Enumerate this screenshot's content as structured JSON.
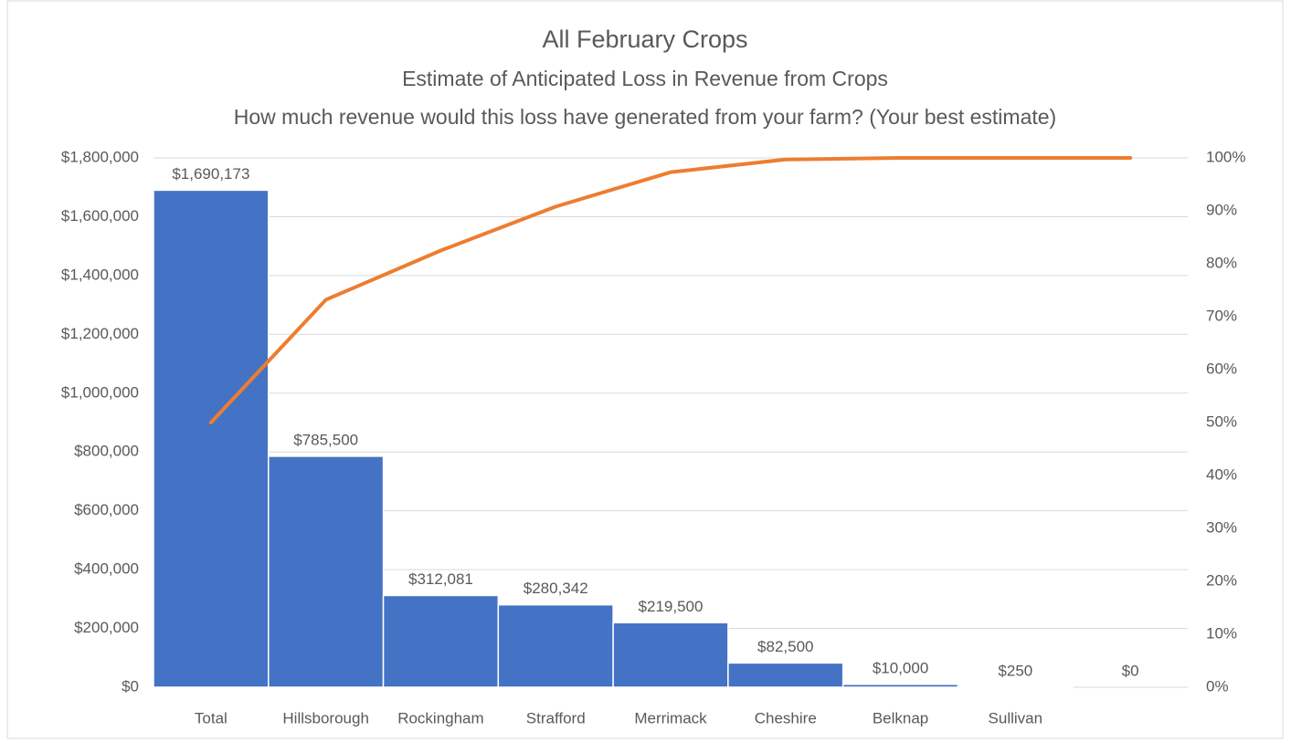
{
  "chart_data": {
    "type": "pareto",
    "title": "All February Crops",
    "subtitles": [
      "Estimate of Anticipated  Loss in Revenue from  Crops",
      "How much  revenue  would this loss have generated from  your farm? (Your best estimate)"
    ],
    "categories": [
      "Total",
      "Hillsborough",
      "Rockingham",
      "Strafford",
      "Merrimack",
      "Cheshire",
      "Belknap",
      "Sullivan",
      null
    ],
    "series": [
      {
        "color": "#4472c4",
        "values": [
          1690173,
          785500,
          312081,
          280342,
          219500,
          82500,
          10000,
          250,
          0
        ],
        "value_labels": [
          "$1,690,173",
          "$785,500",
          "$312,081",
          "$280,342",
          "$219,500",
          "$82,500",
          "$10,000",
          "$250",
          "$0"
        ]
      },
      {
        "color": "#ed7d31",
        "axis": "y2",
        "values": [
          50.0,
          73.2,
          82.5,
          90.8,
          97.3,
          99.7,
          100,
          100,
          100
        ]
      }
    ],
    "ylim": [
      0,
      1800000
    ],
    "yticks": [
      {
        "value": 0,
        "label": "$0"
      },
      {
        "value": 200000,
        "label": "$200,000"
      },
      {
        "value": 400000,
        "label": "$400,000"
      },
      {
        "value": 600000,
        "label": "$600,000"
      },
      {
        "value": 800000,
        "label": "$800,000"
      },
      {
        "value": 1000000,
        "label": "$1,000,000"
      },
      {
        "value": 1200000,
        "label": "$1,200,000"
      },
      {
        "value": 1400000,
        "label": "$1,400,000"
      },
      {
        "value": 1600000,
        "label": "$1,600,000"
      },
      {
        "value": 1800000,
        "label": "$1,800,000"
      }
    ],
    "y2lim": [
      0,
      100
    ],
    "y2ticks": [
      {
        "value": 0,
        "label": "0%"
      },
      {
        "value": 10,
        "label": "10%"
      },
      {
        "value": 20,
        "label": "20%"
      },
      {
        "value": 30,
        "label": "30%"
      },
      {
        "value": 40,
        "label": "40%"
      },
      {
        "value": 50,
        "label": "50%"
      },
      {
        "value": 60,
        "label": "60%"
      },
      {
        "value": 70,
        "label": "70%"
      },
      {
        "value": 80,
        "label": "80%"
      },
      {
        "value": 90,
        "label": "90%"
      },
      {
        "value": 100,
        "label": "100%"
      }
    ],
    "grid": true
  }
}
